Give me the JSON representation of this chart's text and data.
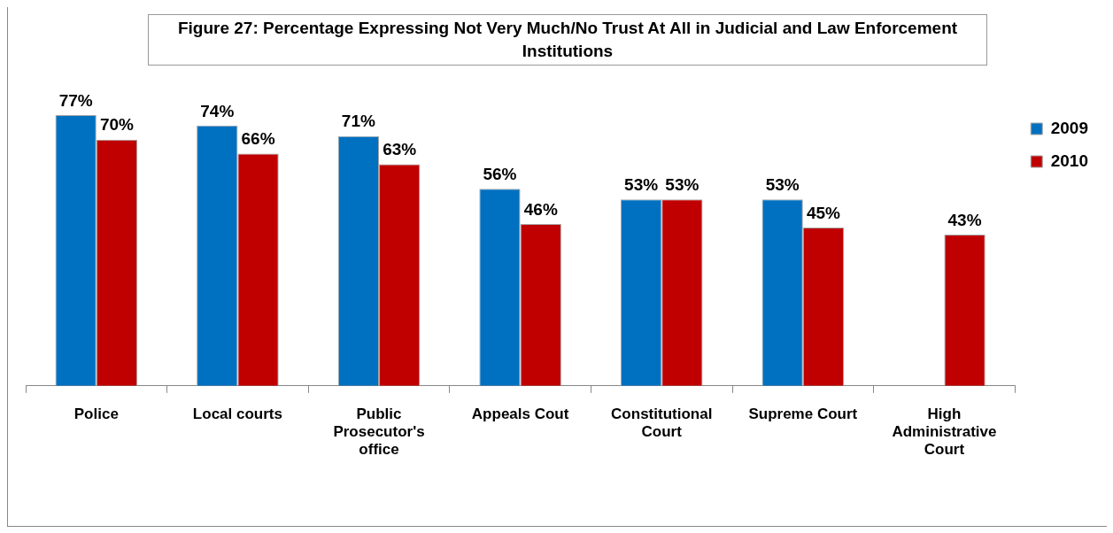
{
  "chart_data": {
    "type": "bar",
    "title": "Figure 27: Percentage Expressing Not Very Much/No Trust At All in Judicial and Law Enforcement Institutions",
    "categories": [
      "Police",
      "Local courts",
      "Public Prosecutor's office",
      "Appeals Cout",
      "Constitutional Court",
      "Supreme Court",
      "High Administrative Court"
    ],
    "series": [
      {
        "name": "2009",
        "color": "#0070c0",
        "values": [
          77,
          74,
          71,
          56,
          53,
          53,
          null
        ],
        "value_labels": [
          "77%",
          "74%",
          "71%",
          "56%",
          "53%",
          "53%",
          null
        ]
      },
      {
        "name": "2010",
        "color": "#c00000",
        "values": [
          70,
          66,
          63,
          46,
          53,
          45,
          43
        ],
        "value_labels": [
          "70%",
          "66%",
          "63%",
          "46%",
          "53%",
          "45%",
          "43%"
        ]
      }
    ],
    "legend": "top right",
    "grid": false
  }
}
